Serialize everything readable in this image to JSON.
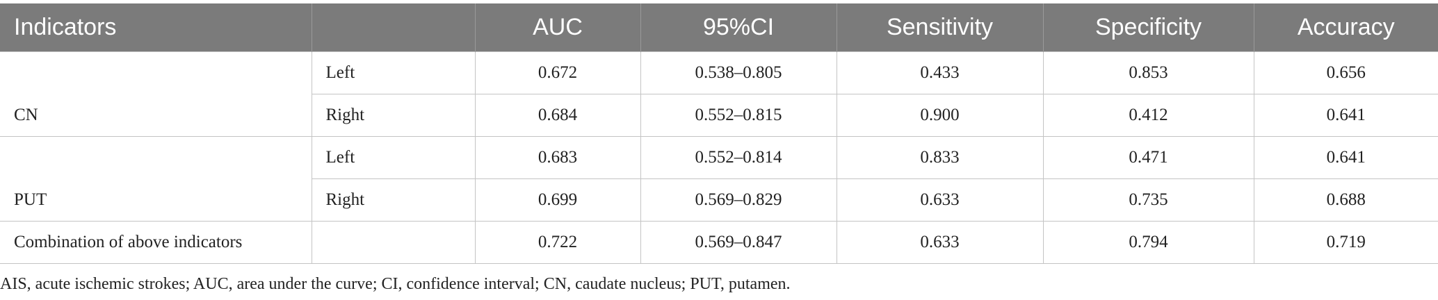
{
  "table": {
    "header": [
      "Indicators",
      "AUC",
      "95%CI",
      "Sensitivity",
      "Specificity",
      "Accuracy"
    ],
    "groups": [
      {
        "indicator": "CN",
        "rows": [
          {
            "side": "Left",
            "values": [
              "0.672",
              "0.538–0.805",
              "0.433",
              "0.853",
              "0.656"
            ]
          },
          {
            "side": "Right",
            "values": [
              "0.684",
              "0.552–0.815",
              "0.900",
              "0.412",
              "0.641"
            ]
          }
        ]
      },
      {
        "indicator": "PUT",
        "rows": [
          {
            "side": "Left",
            "values": [
              "0.683",
              "0.552–0.814",
              "0.833",
              "0.471",
              "0.641"
            ]
          },
          {
            "side": "Right",
            "values": [
              "0.699",
              "0.569–0.829",
              "0.633",
              "0.735",
              "0.688"
            ]
          }
        ]
      },
      {
        "indicator": "Combination of above indicators",
        "rows": [
          {
            "values": [
              "0.722",
              "0.569–0.847",
              "0.633",
              "0.794",
              "0.719"
            ]
          }
        ]
      }
    ]
  },
  "footnote": "AIS, acute ischemic strokes; AUC, area under the curve; CI, confidence interval; CN, caudate nucleus; PUT, putamen."
}
